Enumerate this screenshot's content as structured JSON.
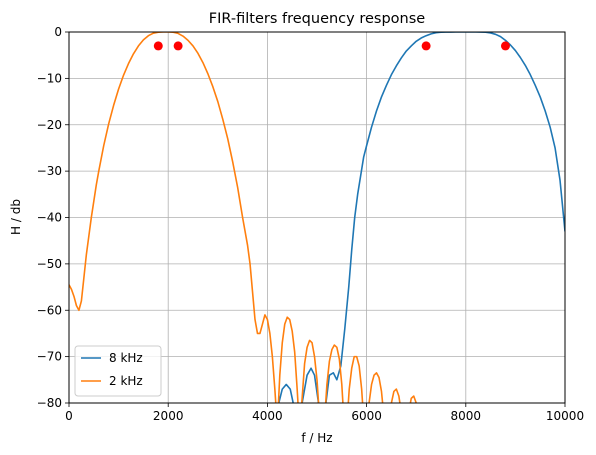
{
  "chart_data": {
    "type": "line",
    "title": "FIR-filters frequency response",
    "xlabel": "f / Hz",
    "ylabel": "H / db",
    "xlim": [
      0,
      10000
    ],
    "ylim": [
      -80,
      0
    ],
    "xticks": [
      0,
      2000,
      4000,
      6000,
      8000,
      10000
    ],
    "yticks": [
      0,
      -10,
      -20,
      -30,
      -40,
      -50,
      -60,
      -70,
      -80
    ],
    "grid": true,
    "legend": "lower-left",
    "series": [
      {
        "name": "8 kHz",
        "color": "#1f77b4",
        "x": [
          4150,
          4230,
          4300,
          4380,
          4460,
          4520,
          4600,
          4700,
          4800,
          4880,
          4950,
          5030,
          5100,
          5180,
          5250,
          5330,
          5400,
          5480,
          5560,
          5640,
          5700,
          5760,
          5820,
          5880,
          5940,
          6000,
          6100,
          6200,
          6300,
          6400,
          6500,
          6600,
          6700,
          6800,
          6900,
          7000,
          7100,
          7200,
          7300,
          7400,
          7500,
          7600,
          7700,
          7800,
          7900,
          8000,
          8100,
          8200,
          8300,
          8400,
          8500,
          8600,
          8700,
          8800,
          8900,
          9000,
          9100,
          9200,
          9300,
          9400,
          9500,
          9600,
          9700,
          9800,
          9900,
          10000
        ],
        "y": [
          -84,
          -80,
          -77,
          -76,
          -77,
          -80,
          -84,
          -80,
          -74,
          -72.5,
          -74,
          -80,
          -84,
          -80,
          -74,
          -73.5,
          -75,
          -72,
          -64,
          -55,
          -47,
          -40,
          -35,
          -31,
          -27,
          -24.5,
          -20.5,
          -17,
          -14,
          -11.5,
          -9.2,
          -7.3,
          -5.6,
          -4.1,
          -3,
          -2,
          -1.3,
          -0.8,
          -0.4,
          -0.15,
          -0.05,
          -0.02,
          -0.01,
          0,
          0,
          0,
          0,
          0,
          -0.02,
          -0.05,
          -0.2,
          -0.5,
          -1,
          -1.8,
          -2.8,
          -4,
          -5.5,
          -7.2,
          -9.2,
          -11.5,
          -14,
          -17,
          -20.5,
          -25,
          -32,
          -43
        ]
      },
      {
        "name": "2 kHz",
        "color": "#ff7f0e",
        "x": [
          0,
          50,
          100,
          150,
          200,
          250,
          300,
          350,
          400,
          450,
          500,
          550,
          600,
          700,
          800,
          900,
          1000,
          1100,
          1200,
          1300,
          1400,
          1500,
          1600,
          1700,
          1800,
          1900,
          2000,
          2100,
          2200,
          2300,
          2400,
          2500,
          2600,
          2700,
          2800,
          2900,
          3000,
          3100,
          3200,
          3300,
          3400,
          3500,
          3550,
          3600,
          3650,
          3700,
          3750,
          3800,
          3850,
          3900,
          3950,
          4000,
          4050,
          4100,
          4150,
          4200,
          4250,
          4300,
          4350,
          4400,
          4450,
          4500,
          4550,
          4600,
          4650,
          4700,
          4750,
          4800,
          4850,
          4900,
          4950,
          5000,
          5050,
          5100,
          5150,
          5200,
          5250,
          5300,
          5350,
          5400,
          5450,
          5500,
          5550,
          5600,
          5650,
          5700,
          5750,
          5800,
          5850,
          5900,
          5950,
          6000,
          6050,
          6100,
          6150,
          6200,
          6250,
          6300,
          6350,
          6400,
          6450,
          6500,
          6550,
          6600,
          6650,
          6700,
          6750,
          6800,
          6850,
          6900,
          6950,
          7000,
          7050,
          7100
        ],
        "y": [
          -54.5,
          -55.5,
          -57,
          -59,
          -60,
          -58,
          -53,
          -48,
          -44,
          -40,
          -36.5,
          -33,
          -30,
          -24.5,
          -19.8,
          -15.8,
          -12.3,
          -9.3,
          -6.8,
          -4.7,
          -3,
          -1.7,
          -0.8,
          -0.25,
          -0.05,
          0,
          0,
          -0.05,
          -0.3,
          -0.9,
          -1.8,
          -3,
          -4.6,
          -6.6,
          -9,
          -11.8,
          -15,
          -18.8,
          -23,
          -28,
          -33.5,
          -40,
          -43,
          -46,
          -50,
          -56,
          -62,
          -65,
          -65,
          -63,
          -61,
          -62,
          -65,
          -70,
          -77,
          -85,
          -74,
          -67,
          -63,
          -61.5,
          -62,
          -64.5,
          -69,
          -77,
          -86,
          -79,
          -71.5,
          -68,
          -66.5,
          -67,
          -70,
          -75,
          -83,
          -88,
          -84,
          -76,
          -71,
          -68.5,
          -67.5,
          -68,
          -70.5,
          -76,
          -85,
          -85,
          -77,
          -72.5,
          -70,
          -70,
          -72,
          -77,
          -85,
          -88,
          -80,
          -76,
          -74,
          -73.5,
          -74.5,
          -77.5,
          -83,
          -88,
          -85,
          -80,
          -77.5,
          -77,
          -78.5,
          -82,
          -88,
          -88,
          -82,
          -79,
          -78.5,
          -80,
          -85,
          -88
        ]
      }
    ],
    "markers": {
      "color": "#ff0000",
      "points": [
        [
          1800,
          -3
        ],
        [
          2200,
          -3
        ],
        [
          7200,
          -3
        ],
        [
          8800,
          -3
        ]
      ]
    }
  }
}
